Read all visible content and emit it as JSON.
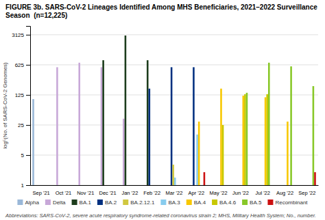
{
  "chart_data": {
    "type": "bar",
    "title": "FIGURE 3b. SARS-CoV-2 Lineages Identified Among MHS Beneficiaries, 2021–2022 Surveillance Season  (n=12,225)",
    "y_label": "log⁵(No. of SARS-CoV-2 Genomes)",
    "footnote": "Abbreviations: SARS-CoV-2, severe acute respiratory syndrome-related coronavirus strain 2; MHS, Military Health System; No., number.",
    "categories": [
      "Sep '21",
      "Oct '21",
      "Nov '21",
      "Dec '21",
      "Jan '22",
      "Feb '22",
      "Mar '22",
      "Apr '22",
      "May '22",
      "Jun '22",
      "Jul '22",
      "Aug '22",
      "Sep '22"
    ],
    "series": [
      {
        "name": "Alpha",
        "color": "#9ab8d8",
        "values": [
          100,
          1,
          1,
          1,
          1,
          1,
          1,
          1,
          1,
          1,
          1,
          1,
          1
        ]
      },
      {
        "name": "Delta",
        "color": "#c8a8d8",
        "values": [
          1,
          550,
          700,
          550,
          35,
          1,
          1,
          1,
          1,
          1,
          1,
          1,
          1
        ]
      },
      {
        "name": "BA.1",
        "color": "#1c3c1c",
        "values": [
          1,
          1,
          1,
          800,
          3000,
          800,
          1,
          1,
          1,
          1,
          1,
          1,
          1
        ]
      },
      {
        "name": "BA.2",
        "color": "#003080",
        "values": [
          1,
          1,
          1,
          1,
          1,
          175,
          550,
          550,
          1,
          1,
          1,
          1,
          1
        ]
      },
      {
        "name": "BA.2.12.1",
        "color": "#d0c840",
        "values": [
          1,
          1,
          1,
          1,
          1,
          1,
          3,
          1,
          1,
          1,
          1,
          1,
          1
        ]
      },
      {
        "name": "BA.3",
        "color": "#88ccee",
        "values": [
          1,
          1,
          1,
          1,
          1,
          1,
          1.5,
          15,
          1,
          1,
          1,
          1,
          1
        ]
      },
      {
        "name": "BA.4",
        "color": "#f8c800",
        "values": [
          1,
          1,
          1,
          1,
          1,
          1,
          1,
          30,
          175,
          120,
          110,
          30,
          1
        ]
      },
      {
        "name": "BA.4.6",
        "color": "#c8c800",
        "values": [
          1,
          1,
          1,
          1,
          1,
          1,
          1,
          1,
          25,
          130,
          130,
          1,
          1
        ]
      },
      {
        "name": "BA.5",
        "color": "#88c828",
        "values": [
          1,
          1,
          1,
          1,
          1,
          1,
          1,
          1,
          1,
          140,
          700,
          575,
          200
        ]
      },
      {
        "name": "Recombinant",
        "color": "#cc1010",
        "values": [
          1,
          1,
          1,
          1,
          1,
          1,
          1,
          2,
          1,
          1,
          1,
          1,
          2
        ]
      }
    ],
    "log": "y",
    "ylim": [
      1,
      5000
    ],
    "yticks": [
      1,
      5,
      25,
      125,
      625,
      3125
    ],
    "grid": true,
    "legend": "bottom"
  }
}
